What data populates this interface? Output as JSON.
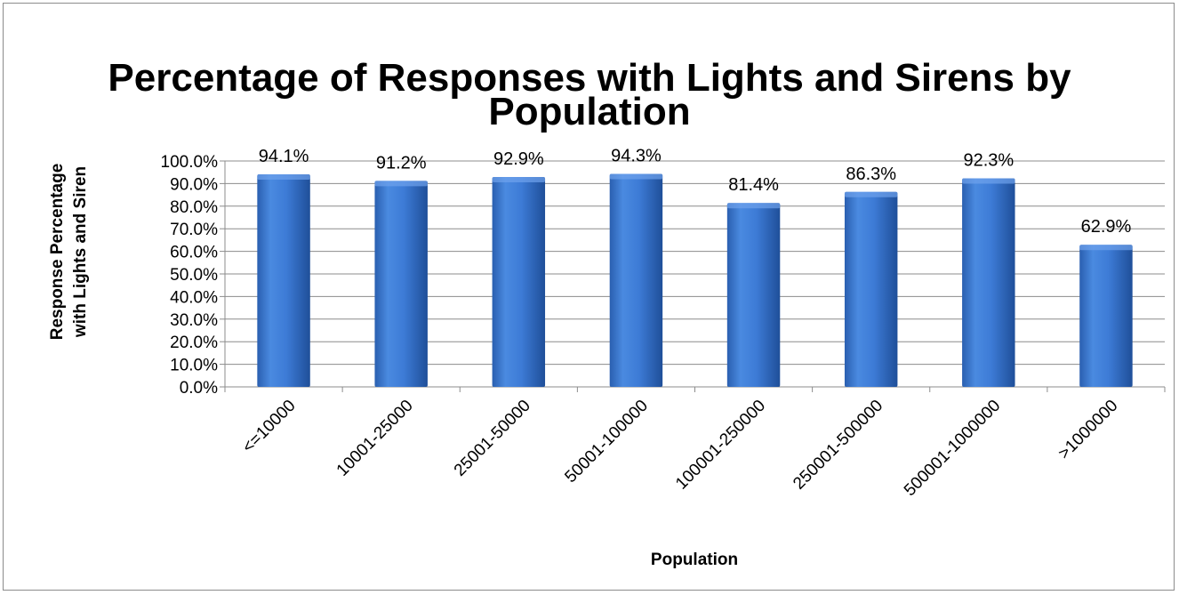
{
  "chart_data": {
    "type": "bar",
    "title_line1": "Percentage of Responses with Lights and Sirens by",
    "title_line2": "Population",
    "xlabel": "Population",
    "ylabel_line1": "Response Percentage",
    "ylabel_line2": "with Lights and Siren",
    "categories": [
      "<=10000",
      "10001-25000",
      "25001-50000",
      "50001-100000",
      "100001-250000",
      "250001-500000",
      "500001-1000000",
      ">1000000"
    ],
    "values": [
      94.1,
      91.2,
      92.9,
      94.3,
      81.4,
      86.3,
      92.3,
      62.9
    ],
    "value_labels": [
      "94.1%",
      "91.2%",
      "92.9%",
      "94.3%",
      "81.4%",
      "86.3%",
      "92.3%",
      "62.9%"
    ],
    "yticks": [
      "0.0%",
      "10.0%",
      "20.0%",
      "30.0%",
      "40.0%",
      "50.0%",
      "60.0%",
      "70.0%",
      "80.0%",
      "90.0%",
      "100.0%"
    ],
    "ylim": [
      0,
      100
    ],
    "grid": true,
    "legend": "none",
    "bar_color": "#3d7bd6"
  }
}
